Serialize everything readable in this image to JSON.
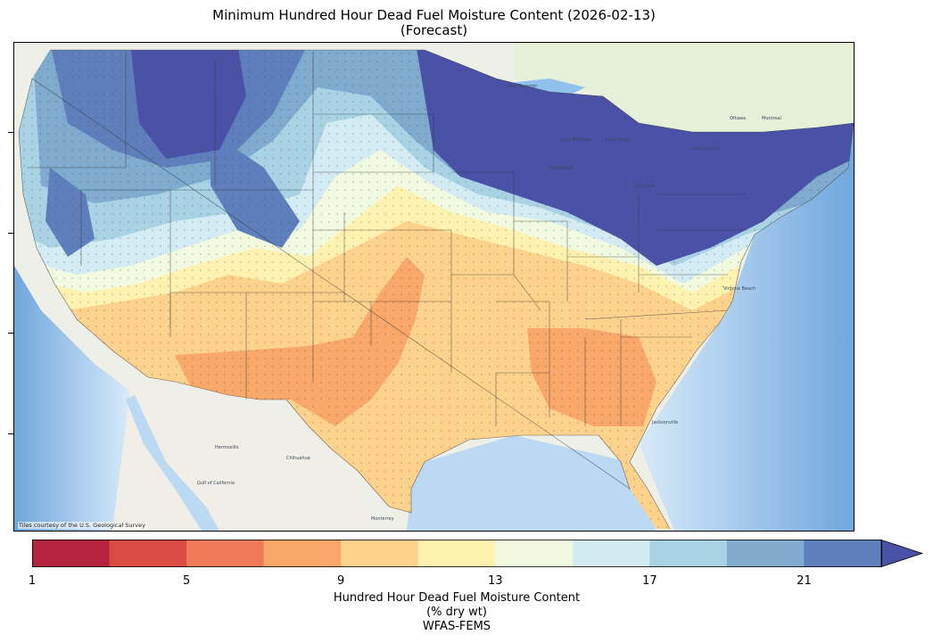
{
  "title": {
    "line1": "Minimum Hundred Hour Dead Fuel Moisture Content (2026-02-13)",
    "line2": "(Forecast)"
  },
  "map": {
    "attribution": "Tiles courtesy of the U.S. Geological Survey",
    "place_labels": [
      "Lake Superior",
      "Lake Michigan",
      "Lake Huron",
      "Lake Erie",
      "Lake Ontario",
      "Milwaukee",
      "Ottawa",
      "Montreal",
      "Hermosillo",
      "Chihuahua",
      "Monterrey",
      "Jacksonville",
      "Gulf of California",
      "Virginia Beach"
    ]
  },
  "colorbar": {
    "ticks": [
      "1",
      "5",
      "9",
      "13",
      "17",
      "21"
    ],
    "tick_values": [
      1,
      5,
      9,
      13,
      17,
      21
    ],
    "range": [
      1,
      23
    ],
    "extend": "max",
    "bins": [
      {
        "from": 1,
        "to": 3,
        "color": "#b5243f"
      },
      {
        "from": 3,
        "to": 5,
        "color": "#db4b45"
      },
      {
        "from": 5,
        "to": 7,
        "color": "#f07a5a"
      },
      {
        "from": 7,
        "to": 9,
        "color": "#f9a86a"
      },
      {
        "from": 9,
        "to": 11,
        "color": "#fdd28c"
      },
      {
        "from": 11,
        "to": 13,
        "color": "#fff2b0"
      },
      {
        "from": 13,
        "to": 15,
        "color": "#f1f9de"
      },
      {
        "from": 15,
        "to": 17,
        "color": "#d3ebf2"
      },
      {
        "from": 17,
        "to": 19,
        "color": "#a9d2e5"
      },
      {
        "from": 19,
        "to": 21,
        "color": "#7fabcf"
      },
      {
        "from": 21,
        "to": 23,
        "color": "#5f7fbc"
      }
    ],
    "over_color": "#4a52a8",
    "label_line1": "Hundred Hour Dead Fuel Moisture Content",
    "label_line2": "(% dry wt)",
    "label_line3": "WFAS-FEMS"
  }
}
